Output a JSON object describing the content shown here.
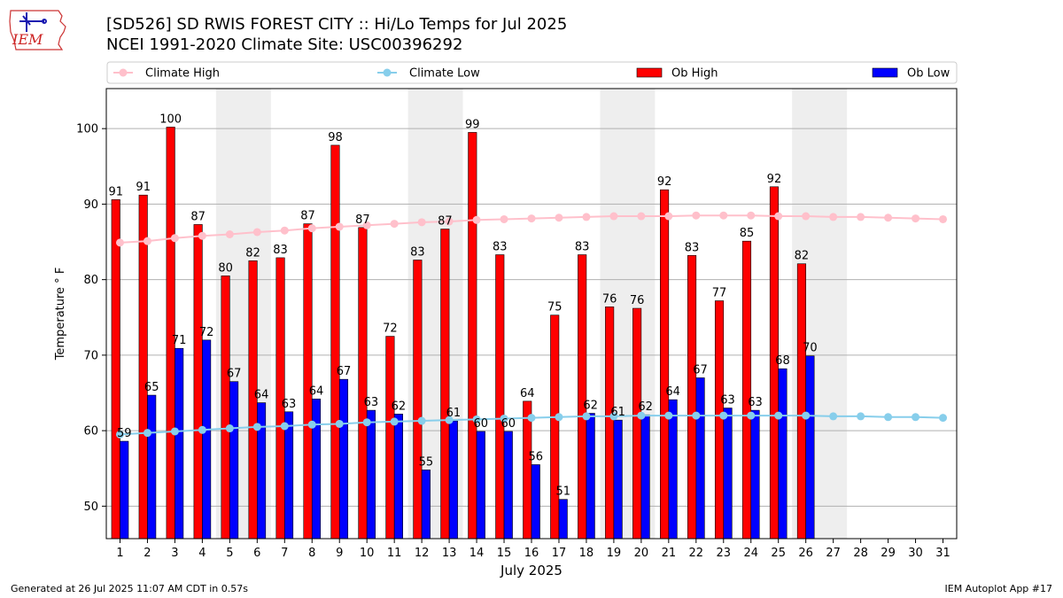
{
  "header": {
    "logo_text": "IEM",
    "title_line1": "[SD526] SD RWIS FOREST CITY :: Hi/Lo Temps for Jul 2025",
    "title_line2": "NCEI 1991-2020 Climate Site: USC00396292"
  },
  "footer": {
    "left": "Generated at 26 Jul 2025 11:07 AM CDT in 0.57s",
    "right": "IEM Autoplot App #17"
  },
  "colors": {
    "ob_high": "#ff0000",
    "ob_low": "#0000ff",
    "climate_high": "#ffc0cb",
    "climate_low": "#87ceeb",
    "weekend_band": "#eeeeee",
    "grid": "#b0b0b0"
  },
  "chart_data": {
    "type": "bar",
    "xlabel": "July 2025",
    "ylabel": "Temperature ° F",
    "ylim": [
      45.7,
      105.3
    ],
    "yticks": [
      50,
      60,
      70,
      80,
      90,
      100
    ],
    "grid": "horizontal",
    "legend_position": "top, above plot",
    "categories": [
      "1",
      "2",
      "3",
      "4",
      "5",
      "6",
      "7",
      "8",
      "9",
      "10",
      "11",
      "12",
      "13",
      "14",
      "15",
      "16",
      "17",
      "18",
      "19",
      "20",
      "21",
      "22",
      "23",
      "24",
      "25",
      "26",
      "27",
      "28",
      "29",
      "30",
      "31"
    ],
    "shaded_days": [
      [
        5,
        6
      ],
      [
        12,
        13
      ],
      [
        19,
        20
      ],
      [
        26,
        27
      ]
    ],
    "series": [
      {
        "name": "Climate High",
        "kind": "line",
        "color": "#ffc0cb",
        "values": [
          84.9,
          85.1,
          85.5,
          85.8,
          86.0,
          86.3,
          86.5,
          86.8,
          87.0,
          87.2,
          87.4,
          87.6,
          87.7,
          87.9,
          88.0,
          88.1,
          88.2,
          88.3,
          88.4,
          88.4,
          88.4,
          88.5,
          88.5,
          88.5,
          88.4,
          88.4,
          88.3,
          88.3,
          88.2,
          88.1,
          88.0
        ]
      },
      {
        "name": "Climate Low",
        "kind": "line",
        "color": "#87ceeb",
        "values": [
          59.5,
          59.7,
          59.9,
          60.1,
          60.3,
          60.5,
          60.6,
          60.8,
          60.9,
          61.1,
          61.2,
          61.3,
          61.4,
          61.5,
          61.6,
          61.7,
          61.8,
          61.9,
          61.9,
          62.0,
          62.0,
          62.0,
          62.0,
          62.0,
          62.0,
          62.0,
          61.9,
          61.9,
          61.8,
          61.8,
          61.7
        ]
      },
      {
        "name": "Ob High",
        "kind": "bar",
        "color": "#ff0000",
        "values": [
          90.6,
          91.2,
          100.2,
          87.3,
          80.5,
          82.5,
          82.9,
          87.4,
          97.8,
          86.9,
          72.5,
          82.6,
          86.7,
          99.5,
          83.3,
          63.9,
          75.3,
          83.3,
          76.4,
          76.2,
          91.9,
          83.2,
          77.2,
          85.1,
          92.3,
          82.1,
          null,
          null,
          null,
          null,
          null
        ],
        "labels": [
          "91",
          "91",
          "100",
          "87",
          "80",
          "82",
          "83",
          "87",
          "98",
          "87",
          "72",
          "83",
          "87",
          "99",
          "83",
          "64",
          "75",
          "83",
          "76",
          "76",
          "92",
          "83",
          "77",
          "85",
          "92",
          "82",
          "",
          "",
          "",
          "",
          ""
        ]
      },
      {
        "name": "Ob Low",
        "kind": "bar",
        "color": "#0000ff",
        "values": [
          58.6,
          64.7,
          70.9,
          72.0,
          66.5,
          63.7,
          62.5,
          64.2,
          66.8,
          62.7,
          62.2,
          54.8,
          61.3,
          59.9,
          59.9,
          55.5,
          50.9,
          62.3,
          61.4,
          62.1,
          64.1,
          67.0,
          63.0,
          62.7,
          68.2,
          69.9,
          null,
          null,
          null,
          null,
          null
        ],
        "labels": [
          "59",
          "65",
          "71",
          "72",
          "67",
          "64",
          "63",
          "64",
          "67",
          "63",
          "62",
          "55",
          "61",
          "60",
          "60",
          "56",
          "51",
          "62",
          "61",
          "62",
          "64",
          "67",
          "63",
          "63",
          "68",
          "70",
          "",
          "",
          "",
          "",
          ""
        ]
      }
    ]
  }
}
